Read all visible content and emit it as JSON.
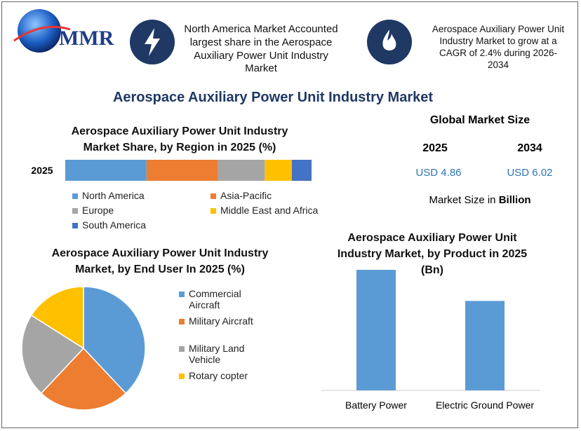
{
  "header": {
    "logo": "MMR",
    "highlight_1": "North America Market Accounted largest share in the Aerospace Auxiliary Power Unit Industry Market",
    "highlight_2": "Aerospace Auxiliary Power Unit Industry Market to grow at a CAGR of 2.4% during 2026-2034"
  },
  "title": "Aerospace Auxiliary Power Unit Industry Market",
  "market_size": {
    "title": "Global Market Size",
    "years": [
      "2025",
      "2034"
    ],
    "values": [
      "USD 4.86",
      "USD 6.02"
    ],
    "note_text": "Market Size in",
    "note_unit": "Billion"
  },
  "chart_data": [
    {
      "type": "stacked_bar",
      "title": "Aerospace Auxiliary Power Unit Industry Market Share, by Region in 2025 (%)",
      "categories": [
        "2025"
      ],
      "series": [
        {
          "name": "North America",
          "color": "#5b9bd5",
          "values": [
            33
          ]
        },
        {
          "name": "Asia-Pacific",
          "color": "#ed7d31",
          "values": [
            29
          ]
        },
        {
          "name": "Europe",
          "color": "#a5a5a5",
          "values": [
            19
          ]
        },
        {
          "name": "Middle East and Africa",
          "color": "#ffc000",
          "values": [
            11
          ]
        },
        {
          "name": "South America",
          "color": "#4472c4",
          "values": [
            8
          ]
        }
      ]
    },
    {
      "type": "pie",
      "title": "Aerospace Auxiliary Power Unit Industry Market, by End User In 2025 (%)",
      "categories": [
        "Commercial Aircraft",
        "Military Aircraft",
        "Military Land Vehicle",
        "Rotary copter"
      ],
      "colors": [
        "#5b9bd5",
        "#ed7d31",
        "#a5a5a5",
        "#ffc000"
      ],
      "values": [
        38,
        24,
        22,
        16
      ]
    },
    {
      "type": "bar",
      "title": "Aerospace Auxiliary Power Unit Industry Market, by Product in 2025 (Bn)",
      "categories": [
        "Battery Power",
        "Electric Ground Power"
      ],
      "color": "#5b9bd5",
      "values": [
        2.79,
        2.07
      ]
    }
  ]
}
